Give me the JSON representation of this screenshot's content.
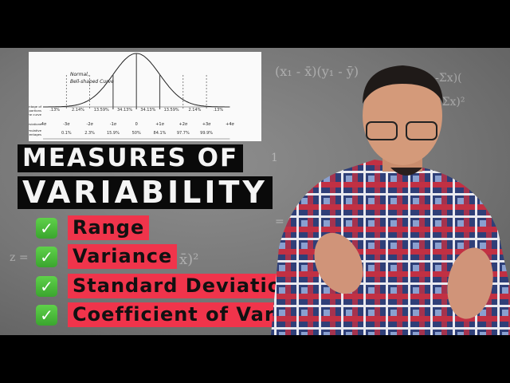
{
  "chart_inset": {
    "curve_label": [
      "Normal,",
      "Bell-shaped Curve"
    ],
    "row_labels": {
      "percentage": [
        "Percentage of",
        "cases in 8 portions",
        "of the curve"
      ],
      "std_dev": "Standard Deviations",
      "cumulative": [
        "Cumulative",
        "Percentages"
      ]
    },
    "segment_percentages": [
      ".13%",
      "2.14%",
      "13.59%",
      "34.13%",
      "34.13%",
      "13.59%",
      "2.14%",
      ".13%"
    ],
    "std_dev_ticks": [
      "-4σ",
      "-3σ",
      "-2σ",
      "-1σ",
      "0",
      "+1σ",
      "+2σ",
      "+3σ",
      "+4σ"
    ],
    "cumulative_percentages": [
      "0.1%",
      "2.3%",
      "15.9%",
      "50%",
      "84.1%",
      "97.7%",
      "99.9%"
    ]
  },
  "title": {
    "line1": "MEASURES OF",
    "line2": "VARIABILITY"
  },
  "items": [
    {
      "label": "Range",
      "icon": "check-mark-button-icon"
    },
    {
      "label": "Variance",
      "icon": "check-mark-button-icon"
    },
    {
      "label": "Standard Deviation",
      "icon": "check-mark-button-icon"
    },
    {
      "label": "Coefficient of Variation",
      "icon": "check-mark-button-icon"
    }
  ],
  "colors": {
    "highlight": "#f0344b",
    "title_bg": "#0a0a0a",
    "check": "#4cbf3c"
  }
}
